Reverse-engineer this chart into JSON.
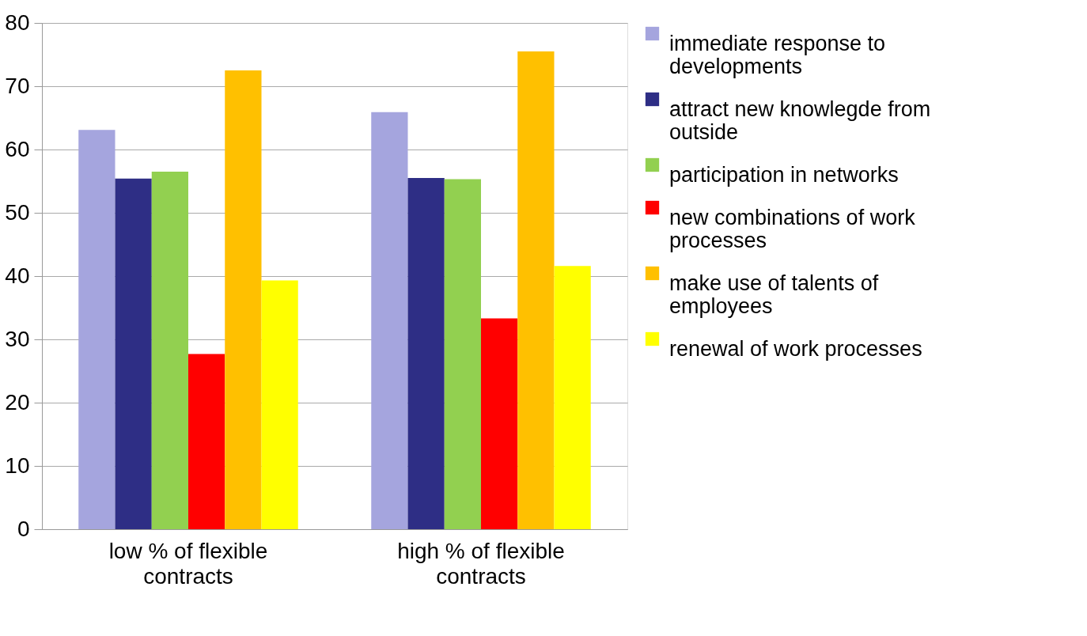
{
  "chart_data": {
    "type": "bar",
    "categories": [
      "low % of flexible contracts",
      "high % of flexible contracts"
    ],
    "series": [
      {
        "name": "immediate response to developments",
        "color": "#a5a5de",
        "values": [
          63.1,
          65.9
        ]
      },
      {
        "name": "attract new knowlegde from outside",
        "color": "#2e2e85",
        "values": [
          55.4,
          55.5
        ]
      },
      {
        "name": "participation in networks",
        "color": "#92d050",
        "values": [
          56.5,
          55.3
        ]
      },
      {
        "name": "new combinations of work processes",
        "color": "#ff0000",
        "values": [
          27.7,
          33.3
        ]
      },
      {
        "name": "make use of talents of employees",
        "color": "#ffc000",
        "values": [
          72.5,
          75.5
        ]
      },
      {
        "name": "renewal of work processes",
        "color": "#ffff00",
        "values": [
          39.3,
          41.6
        ]
      }
    ],
    "ylim": [
      0,
      80
    ],
    "yticks": [
      0,
      10,
      20,
      30,
      40,
      50,
      60,
      70,
      80
    ],
    "grid": "y",
    "legend": "right"
  }
}
